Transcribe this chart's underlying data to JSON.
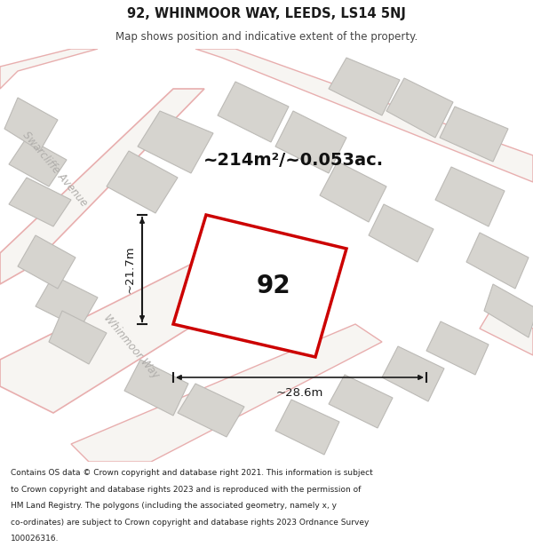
{
  "title_line1": "92, WHINMOOR WAY, LEEDS, LS14 5NJ",
  "title_line2": "Map shows position and indicative extent of the property.",
  "area_label": "~214m²/~0.053ac.",
  "width_label": "~28.6m",
  "height_label": "~21.7m",
  "house_number": "92",
  "footer_lines": [
    "Contains OS data © Crown copyright and database right 2021. This information is subject",
    "to Crown copyright and database rights 2023 and is reproduced with the permission of",
    "HM Land Registry. The polygons (including the associated geometry, namely x, y",
    "co-ordinates) are subject to Crown copyright and database rights 2023 Ordnance Survey",
    "100026316."
  ],
  "map_bg": "#efede8",
  "building_fill": "#d6d4cf",
  "building_stroke": "#bcbab6",
  "road_fill": "#f7f5f2",
  "road_stroke": "#e8aeae",
  "subject_fill": "#ffffff",
  "subject_stroke": "#cc0000",
  "dim_color": "#1a1a1a",
  "street_label_color": "#b0aeab",
  "title_color": "#1a1a1a",
  "subtitle_color": "#444444",
  "footer_color": "#222222",
  "header_bg": "#ffffff",
  "footer_bg": "#ffffff"
}
